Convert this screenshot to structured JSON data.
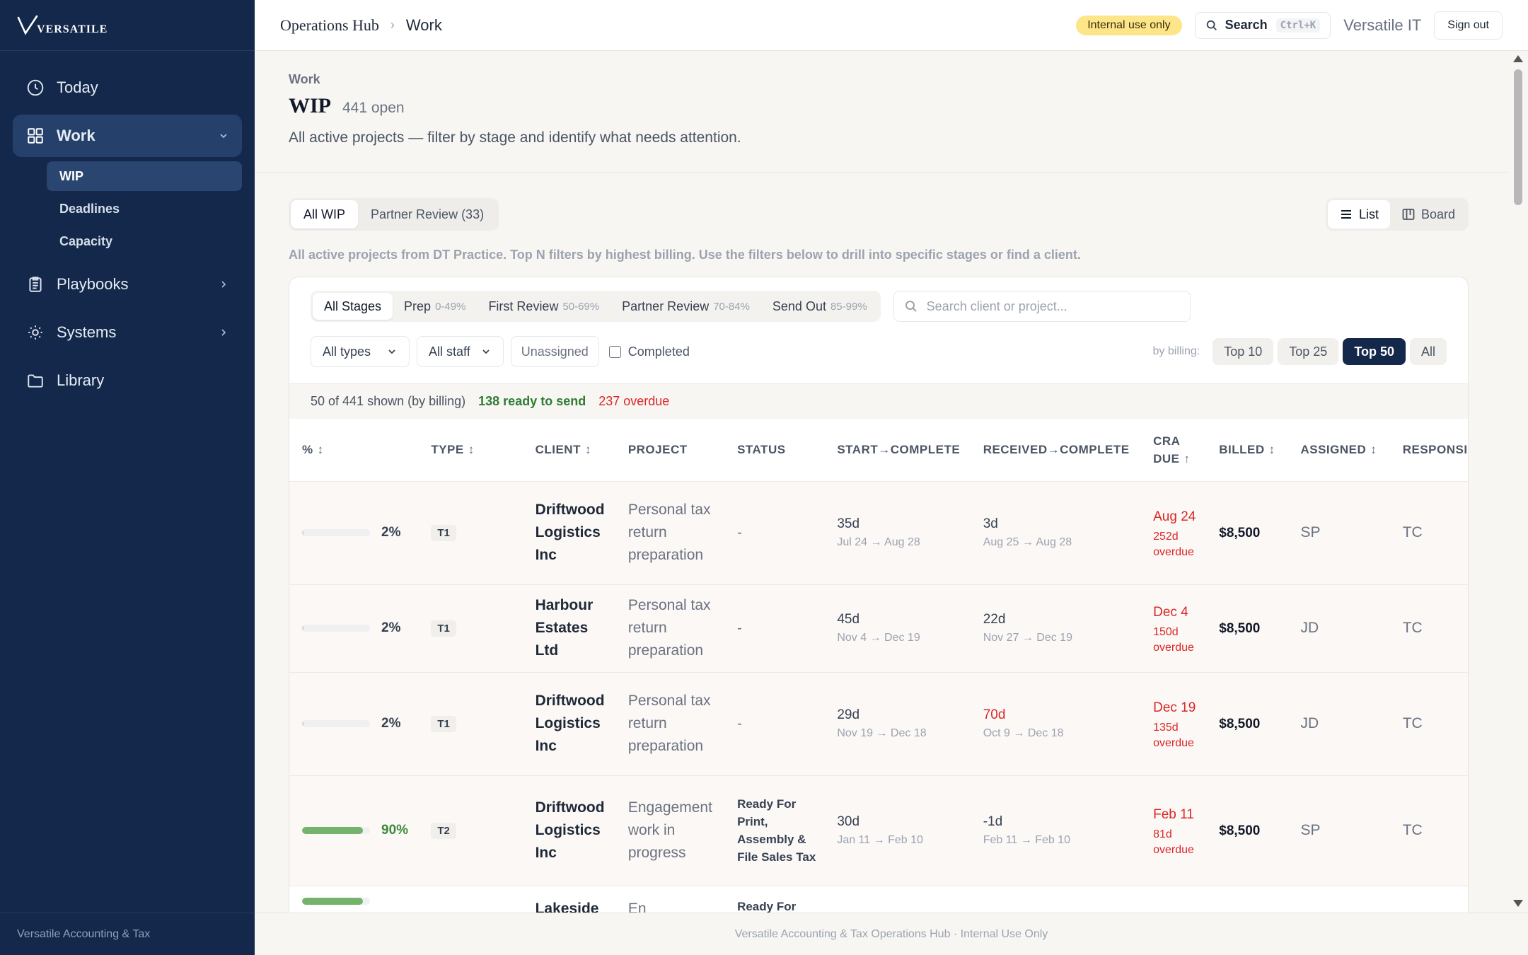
{
  "brand": {
    "name": "VERSATILE",
    "footer": "Versatile Accounting & Tax"
  },
  "sidebar": {
    "items": [
      {
        "label": "Today",
        "icon": "clock-icon"
      },
      {
        "label": "Work",
        "icon": "grid-icon",
        "active": true
      },
      {
        "label": "Playbooks",
        "icon": "clipboard-icon"
      },
      {
        "label": "Systems",
        "icon": "sun-icon"
      },
      {
        "label": "Library",
        "icon": "folder-icon"
      }
    ],
    "subitems": [
      {
        "label": "WIP",
        "active": true
      },
      {
        "label": "Deadlines"
      },
      {
        "label": "Capacity"
      }
    ]
  },
  "topbar": {
    "breadcrumb_root": "Operations Hub",
    "breadcrumb_current": "Work",
    "badge": "Internal use only",
    "search_label": "Search",
    "search_shortcut": "Ctrl+K",
    "org": "Versatile IT",
    "signout": "Sign out"
  },
  "header": {
    "eyebrow": "Work",
    "title": "WIP",
    "count": "441 open",
    "description": "All active projects — filter by stage and identify what needs attention."
  },
  "tabs": [
    {
      "label": "All WIP",
      "active": true
    },
    {
      "label": "Partner Review (33)"
    }
  ],
  "view_toggle": {
    "list": "List",
    "board": "Board",
    "active": "list"
  },
  "hint": "All active projects from DT Practice. Top N filters by highest billing. Use the filters below to drill into specific stages or find a client.",
  "filters": {
    "stages": [
      {
        "label": "All Stages",
        "range": "",
        "active": true
      },
      {
        "label": "Prep",
        "range": "0-49%"
      },
      {
        "label": "First Review",
        "range": "50-69%"
      },
      {
        "label": "Partner Review",
        "range": "70-84%"
      },
      {
        "label": "Send Out",
        "range": "85-99%"
      }
    ],
    "search_placeholder": "Search client or project...",
    "type_select": "All types",
    "staff_select": "All staff",
    "unassigned": "Unassigned",
    "completed": "Completed",
    "billing_label": "by billing:",
    "billing_options": [
      "Top 10",
      "Top 25",
      "Top 50",
      "All"
    ],
    "billing_active": "Top 50"
  },
  "summary": {
    "shown": "50 of 441 shown (by billing)",
    "ready": "138 ready to send",
    "overdue": "237 overdue"
  },
  "table": {
    "columns": [
      {
        "label": "%",
        "sort": "↕"
      },
      {
        "label": "TYPE",
        "sort": "↕"
      },
      {
        "label": "CLIENT",
        "sort": "↕"
      },
      {
        "label": "PROJECT",
        "sort": ""
      },
      {
        "label": "STATUS",
        "sort": ""
      },
      {
        "label": "START→COMPLETE",
        "sort": ""
      },
      {
        "label": "RECEIVED→COMPLETE",
        "sort": ""
      },
      {
        "label": "CRA DUE",
        "sort": "↑"
      },
      {
        "label": "BILLED",
        "sort": "↕"
      },
      {
        "label": "ASSIGNED",
        "sort": "↕"
      },
      {
        "label": "RESPONSIBLE",
        "sort": ""
      }
    ],
    "rows": [
      {
        "pct": 2,
        "pct_label": "2%",
        "type": "T1",
        "client": "Driftwood Logistics Inc",
        "project": "Personal tax return preparation",
        "status": "-",
        "start_dur": "35d",
        "start_range": "Jul 24 → Aug 28",
        "recv_dur": "3d",
        "recv_late": false,
        "recv_range": "Aug 25 → Aug 28",
        "cra_due": "Aug 24",
        "cra_overdue": "252d overdue",
        "billed": "$8,500",
        "assigned": "SP",
        "responsible": "TC"
      },
      {
        "pct": 2,
        "pct_label": "2%",
        "type": "T1",
        "client": "Harbour Estates Ltd",
        "project": "Personal tax return preparation",
        "status": "-",
        "start_dur": "45d",
        "start_range": "Nov 4 → Dec 19",
        "recv_dur": "22d",
        "recv_late": false,
        "recv_range": "Nov 27 → Dec 19",
        "cra_due": "Dec 4",
        "cra_overdue": "150d overdue",
        "billed": "$8,500",
        "assigned": "JD",
        "responsible": "TC"
      },
      {
        "pct": 2,
        "pct_label": "2%",
        "type": "T1",
        "client": "Driftwood Logistics Inc",
        "project": "Personal tax return preparation",
        "status": "-",
        "start_dur": "29d",
        "start_range": "Nov 19 → Dec 18",
        "recv_dur": "70d",
        "recv_late": true,
        "recv_range": "Oct 9 → Dec 18",
        "cra_due": "Dec 19",
        "cra_overdue": "135d overdue",
        "billed": "$8,500",
        "assigned": "JD",
        "responsible": "TC"
      },
      {
        "pct": 90,
        "pct_label": "90%",
        "type": "T2",
        "client": "Driftwood Logistics Inc",
        "project": "Engagement work in progress",
        "status": "Ready For Print, Assembly & File Sales Tax",
        "start_dur": "30d",
        "start_range": "Jan 11 → Feb 10",
        "recv_dur": "-1d",
        "recv_late": false,
        "recv_range": "Feb 11 → Feb 10",
        "cra_due": "Feb 11",
        "cra_overdue": "81d overdue",
        "billed": "$8,500",
        "assigned": "SP",
        "responsible": "TC"
      },
      {
        "pct": 90,
        "pct_label": "",
        "type": "",
        "client": "Lakeside",
        "project": "En",
        "status": "Ready For",
        "start_dur": "",
        "start_range": "",
        "recv_dur": "",
        "recv_late": false,
        "recv_range": "",
        "cra_due": "",
        "cra_overdue": "",
        "billed": "",
        "assigned": "",
        "responsible": ""
      }
    ]
  },
  "footer": "Versatile Accounting & Tax Operations Hub · Internal Use Only",
  "colors": {
    "sidebar": "#13284a",
    "accent": "#13284a",
    "danger": "#dc2626",
    "success": "#2f7d32",
    "badge": "#fde68a"
  }
}
